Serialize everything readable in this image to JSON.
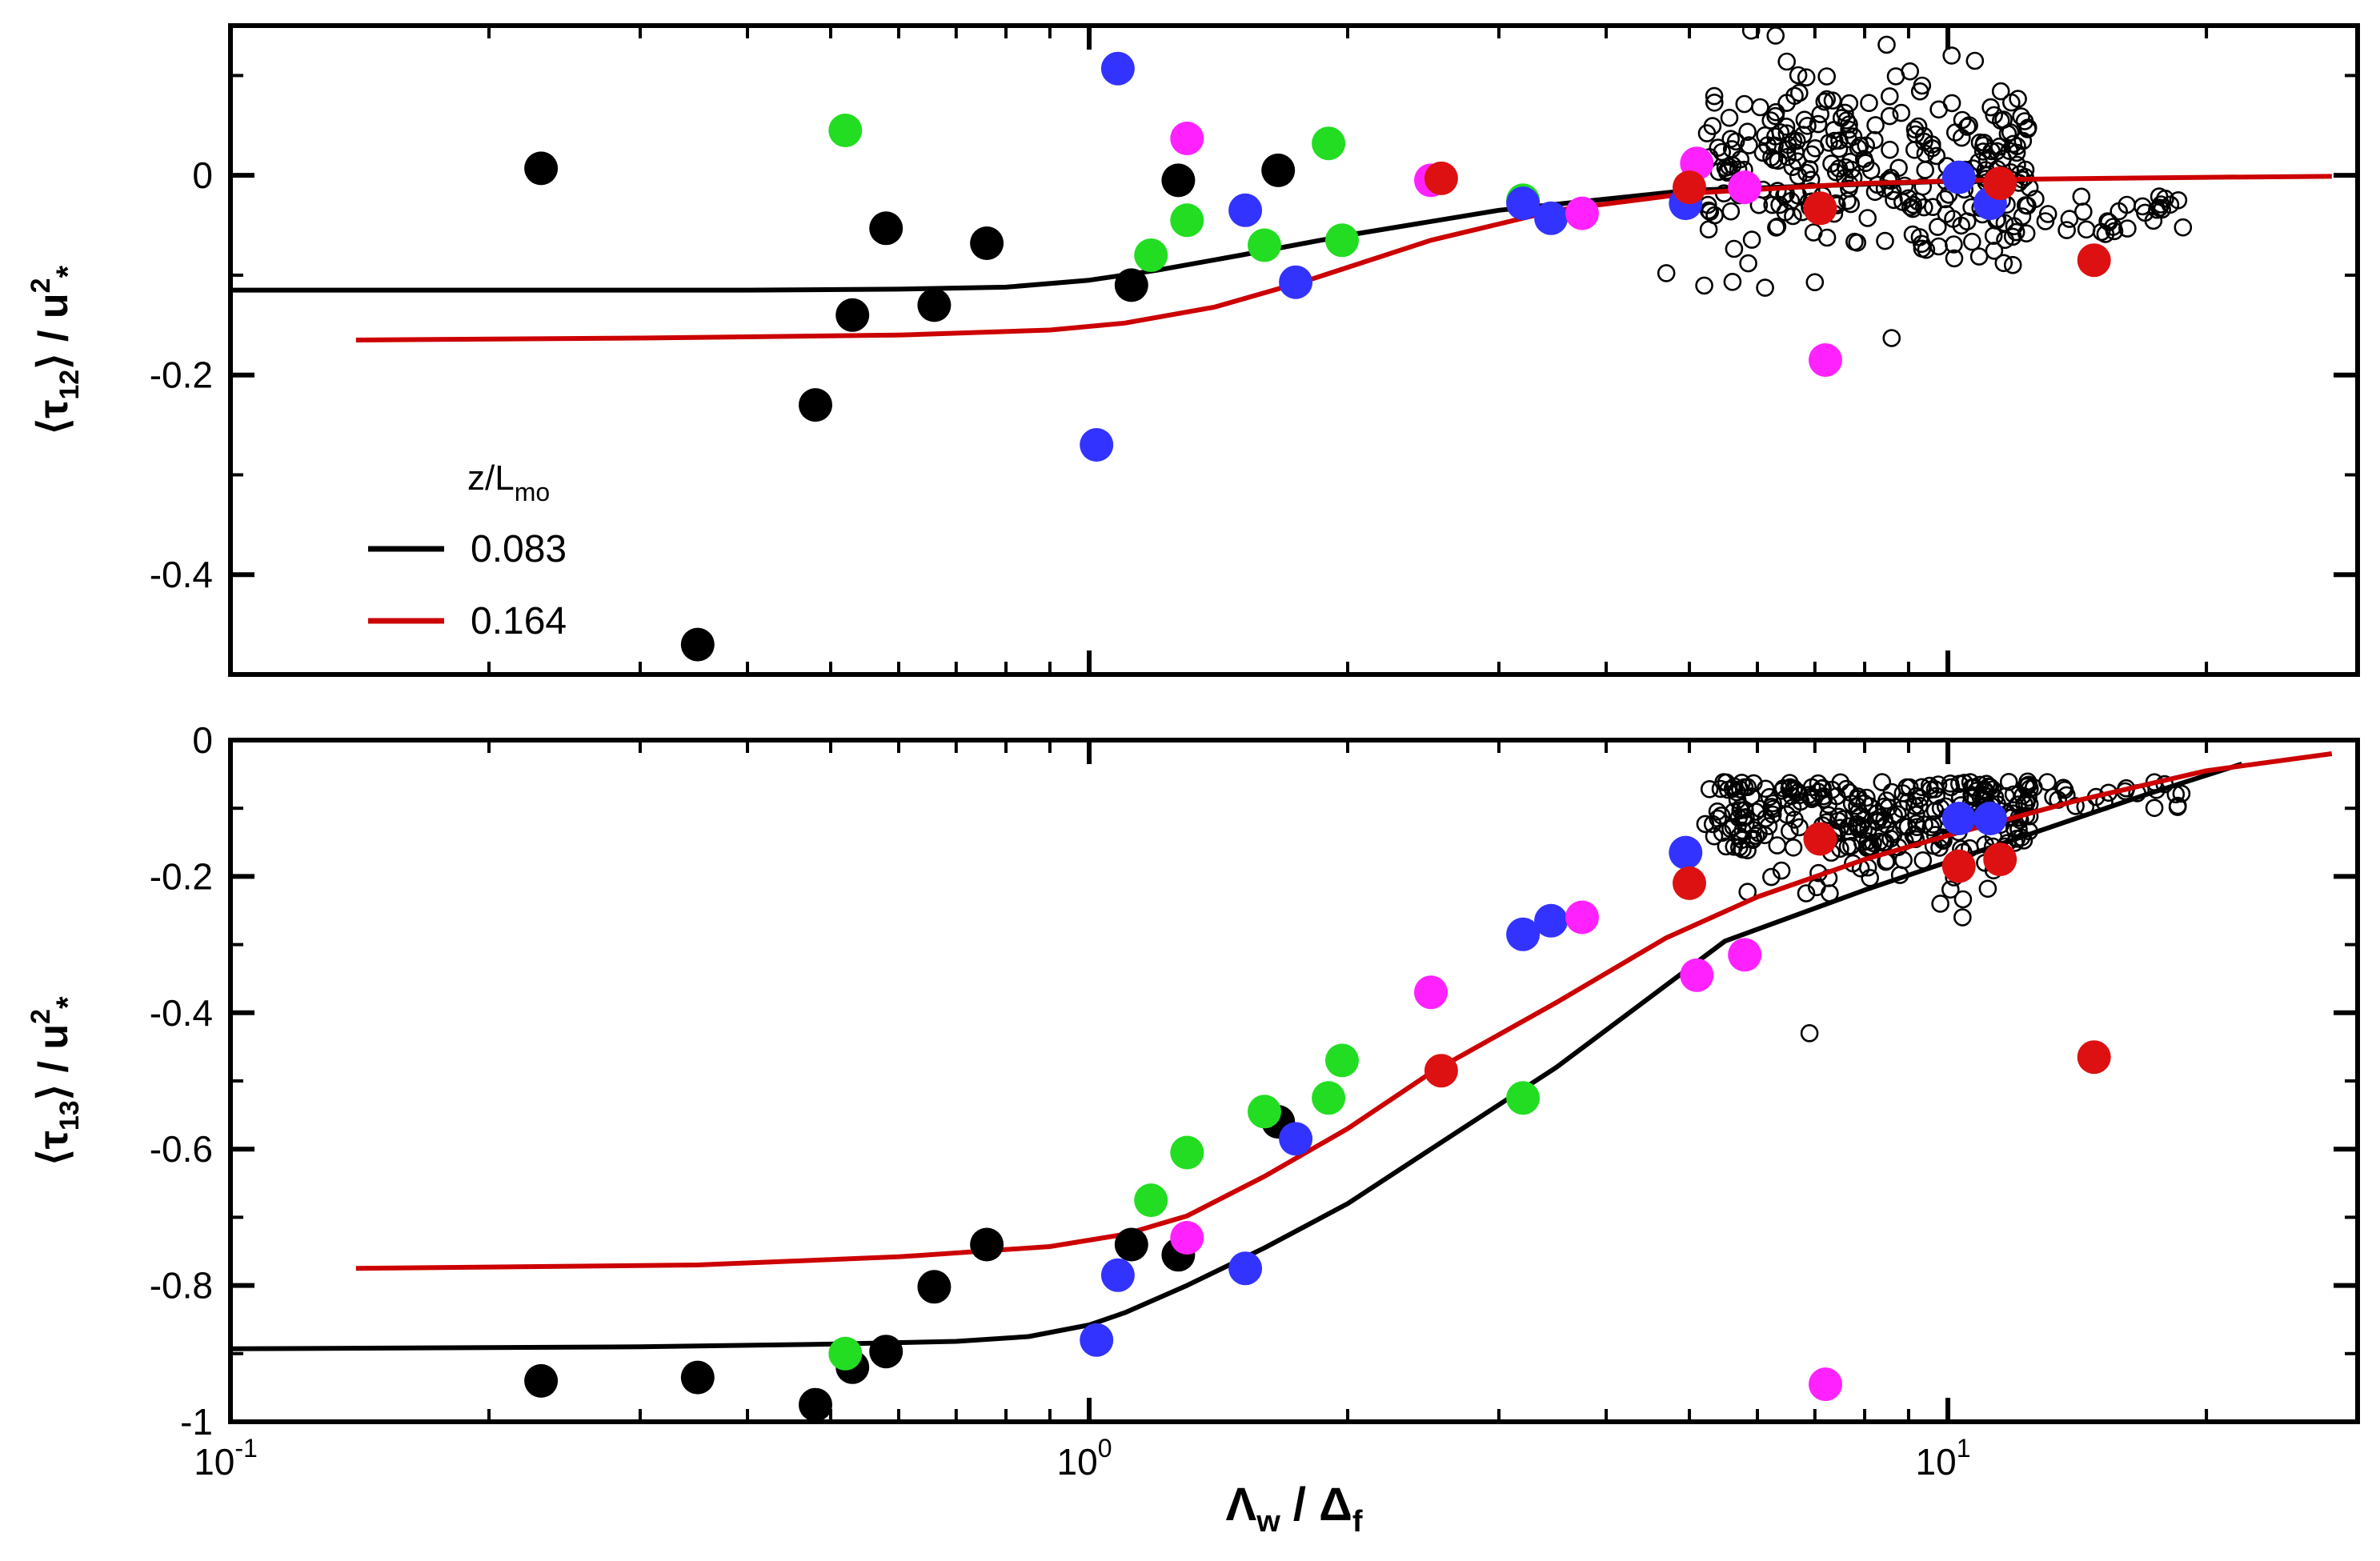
{
  "chart_data": [
    {
      "type": "scatter",
      "panel": "top",
      "ylabel": "⟨τ12⟩ / u*²",
      "ylabel_parts": {
        "open": "⟨τ",
        "sub": "12",
        "close": "⟩ / u",
        "sup": "2",
        "star": "*"
      },
      "xscale": "log",
      "xlim": [
        0.1,
        30
      ],
      "ylim": [
        -0.5,
        0.15
      ],
      "yticks": [
        {
          "value": 0,
          "label": "0"
        },
        {
          "value": -0.2,
          "label": "-0.2"
        },
        {
          "value": -0.4,
          "label": "-0.4"
        }
      ],
      "legend": {
        "title": "z/L",
        "title_sub": "mo",
        "placement": "center-left",
        "entries": [
          {
            "label": "0.083",
            "color": "#000000"
          },
          {
            "label": "0.164",
            "color": "#cc0000"
          }
        ]
      },
      "series": [
        {
          "name": "0.083",
          "kind": "line",
          "color": "#000000",
          "x": [
            0.1,
            0.2,
            0.4,
            0.6,
            0.8,
            1.0,
            1.2,
            1.5,
            2.0,
            3.0,
            5.0,
            10.0,
            12.0
          ],
          "y": [
            -0.115,
            -0.115,
            -0.115,
            -0.114,
            -0.112,
            -0.105,
            -0.095,
            -0.08,
            -0.06,
            -0.035,
            -0.015,
            -0.006,
            -0.005
          ]
        },
        {
          "name": "0.164",
          "kind": "line",
          "color": "#cc0000",
          "x": [
            0.14,
            0.3,
            0.6,
            0.9,
            1.1,
            1.4,
            1.8,
            2.5,
            3.5,
            5.0,
            8.0,
            12.0,
            20.0,
            28.0
          ],
          "y": [
            -0.165,
            -0.163,
            -0.16,
            -0.155,
            -0.148,
            -0.132,
            -0.105,
            -0.065,
            -0.035,
            -0.018,
            -0.008,
            -0.004,
            -0.002,
            -0.001
          ]
        },
        {
          "name": "black markers",
          "kind": "dots",
          "color": "#000000",
          "x": [
            0.23,
            0.35,
            0.48,
            0.53,
            0.58,
            0.66,
            0.76,
            1.12,
            1.27,
            1.66
          ],
          "y": [
            0.007,
            -0.47,
            -0.23,
            -0.14,
            -0.053,
            -0.13,
            -0.068,
            -0.11,
            -0.005,
            0.005
          ]
        },
        {
          "name": "green markers",
          "kind": "dots",
          "color": "#22dd22",
          "x": [
            0.52,
            1.18,
            1.3,
            1.6,
            1.9,
            1.97,
            3.2
          ],
          "y": [
            0.045,
            -0.08,
            -0.045,
            -0.07,
            0.032,
            -0.065,
            -0.025
          ]
        },
        {
          "name": "blue markers",
          "kind": "dots",
          "color": "#3333ff",
          "x": [
            1.02,
            1.08,
            1.52,
            1.74,
            3.2,
            3.45,
            4.95,
            10.3,
            11.2
          ],
          "y": [
            -0.27,
            0.107,
            -0.035,
            -0.107,
            -0.028,
            -0.043,
            -0.028,
            -0.002,
            -0.028
          ]
        },
        {
          "name": "magenta markers",
          "kind": "dots",
          "color": "#ff22ff",
          "x": [
            1.3,
            2.5,
            3.75,
            5.1,
            5.8,
            7.2
          ],
          "y": [
            0.037,
            -0.005,
            -0.038,
            0.012,
            -0.012,
            -0.185
          ]
        },
        {
          "name": "red markers",
          "kind": "dots",
          "color": "#dd1111",
          "x": [
            2.57,
            5.0,
            7.1,
            11.5,
            14.8
          ],
          "y": [
            -0.003,
            -0.012,
            -0.033,
            -0.008,
            -0.085
          ]
        }
      ]
    },
    {
      "type": "scatter",
      "panel": "bottom",
      "ylabel": "⟨τ13⟩ / u*²",
      "ylabel_parts": {
        "open": "⟨τ",
        "sub": "13",
        "close": "⟩ / u",
        "sup": "2",
        "star": "*"
      },
      "xlabel": "Λw / Δf",
      "xlabel_parts": {
        "a": "Λ",
        "a_sub": "w",
        "mid": " / Δ",
        "b_sub": "f"
      },
      "xscale": "log",
      "xlim": [
        0.1,
        30
      ],
      "ylim": [
        -1.0,
        0.0
      ],
      "yticks": [
        {
          "value": 0,
          "label": "0"
        },
        {
          "value": -0.2,
          "label": "-0.2"
        },
        {
          "value": -0.4,
          "label": "-0.4"
        },
        {
          "value": -0.6,
          "label": "-0.6"
        },
        {
          "value": -0.8,
          "label": "-0.8"
        },
        {
          "value": -1.0,
          "label": "-1"
        }
      ],
      "xticks": [
        {
          "value": 0.1,
          "base": "10",
          "exp": "-1"
        },
        {
          "value": 1,
          "base": "10",
          "exp": "0"
        },
        {
          "value": 10,
          "base": "10",
          "exp": "1"
        }
      ],
      "series": [
        {
          "name": "0.083",
          "kind": "line",
          "color": "#000000",
          "x": [
            0.1,
            0.3,
            0.5,
            0.7,
            0.85,
            1.0,
            1.1,
            1.3,
            1.6,
            2.0,
            2.5,
            3.5,
            5.5,
            8.0,
            12.0,
            17.0,
            22.0
          ],
          "y": [
            -0.893,
            -0.89,
            -0.886,
            -0.882,
            -0.875,
            -0.858,
            -0.84,
            -0.8,
            -0.745,
            -0.68,
            -0.6,
            -0.48,
            -0.295,
            -0.22,
            -0.145,
            -0.08,
            -0.035
          ]
        },
        {
          "name": "0.164",
          "kind": "line",
          "color": "#cc0000",
          "x": [
            0.14,
            0.35,
            0.6,
            0.9,
            1.1,
            1.3,
            1.6,
            2.0,
            2.5,
            3.5,
            4.7,
            6.0,
            8.0,
            10.0,
            14.0,
            20.0,
            28.0
          ],
          "y": [
            -0.775,
            -0.77,
            -0.758,
            -0.743,
            -0.725,
            -0.698,
            -0.64,
            -0.57,
            -0.488,
            -0.385,
            -0.29,
            -0.23,
            -0.175,
            -0.14,
            -0.09,
            -0.045,
            -0.02
          ]
        },
        {
          "name": "black markers",
          "kind": "dots",
          "color": "#000000",
          "x": [
            0.23,
            0.35,
            0.48,
            0.53,
            0.58,
            0.66,
            0.76,
            1.12,
            1.27,
            1.66
          ],
          "y": [
            -0.94,
            -0.935,
            -0.975,
            -0.92,
            -0.897,
            -0.802,
            -0.74,
            -0.74,
            -0.755,
            -0.56
          ]
        },
        {
          "name": "green markers",
          "kind": "dots",
          "color": "#22dd22",
          "x": [
            0.52,
            1.18,
            1.3,
            1.6,
            1.9,
            1.97,
            3.2
          ],
          "y": [
            -0.9,
            -0.675,
            -0.605,
            -0.545,
            -0.525,
            -0.47,
            -0.525
          ]
        },
        {
          "name": "blue markers",
          "kind": "dots",
          "color": "#3333ff",
          "x": [
            1.02,
            1.08,
            1.52,
            1.74,
            3.2,
            3.45,
            4.95,
            10.3,
            11.2
          ],
          "y": [
            -0.88,
            -0.785,
            -0.775,
            -0.585,
            -0.285,
            -0.265,
            -0.165,
            -0.115,
            -0.115
          ]
        },
        {
          "name": "magenta markers",
          "kind": "dots",
          "color": "#ff22ff",
          "x": [
            1.3,
            2.5,
            3.75,
            5.1,
            5.8,
            7.2
          ],
          "y": [
            -0.73,
            -0.37,
            -0.26,
            -0.345,
            -0.315,
            -0.945
          ]
        },
        {
          "name": "red markers",
          "kind": "dots",
          "color": "#dd1111",
          "x": [
            2.57,
            5.0,
            7.1,
            10.3,
            11.5,
            14.8
          ],
          "y": [
            -0.485,
            -0.21,
            -0.145,
            -0.185,
            -0.175,
            -0.465
          ]
        }
      ]
    }
  ]
}
